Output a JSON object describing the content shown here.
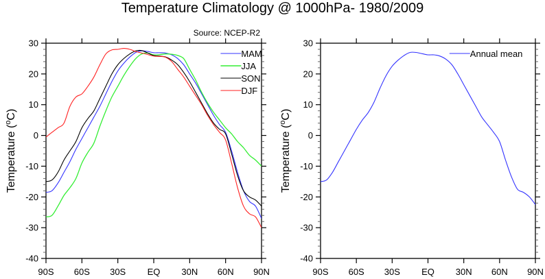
{
  "title": "Temperature Climatology @ 1000hPa- 1980/2009",
  "chart_data": [
    {
      "type": "line",
      "panel": "left",
      "source_label": "Source: NCEP-R2",
      "xlabel": "",
      "ylabel": "Temperature (°C)",
      "ylabel_parts": {
        "pre": "Temperature (",
        "sup": "o",
        "post": "C)"
      },
      "xlim": [
        -90,
        90
      ],
      "ylim": [
        -40,
        30
      ],
      "xticks": [
        -90,
        -60,
        -30,
        0,
        30,
        60,
        90
      ],
      "xtick_labels": [
        "90S",
        "60S",
        "30S",
        "EQ",
        "30N",
        "60N",
        "90N"
      ],
      "yticks": [
        -40,
        -30,
        -20,
        -10,
        0,
        10,
        20,
        30
      ],
      "ytick_labels": [
        "-40",
        "-30",
        "-20",
        "-10",
        "0",
        "10",
        "20",
        "30"
      ],
      "grid": false,
      "legend_position": "top-right",
      "x": [
        -90,
        -85,
        -80,
        -75,
        -70,
        -65,
        -60,
        -55,
        -50,
        -45,
        -40,
        -35,
        -30,
        -25,
        -20,
        -15,
        -10,
        -5,
        0,
        5,
        10,
        15,
        20,
        25,
        30,
        35,
        40,
        45,
        50,
        55,
        60,
        65,
        70,
        75,
        80,
        85,
        90
      ],
      "series": [
        {
          "name": "MAM",
          "color": "#3333ff",
          "values": [
            -18.5,
            -18,
            -15.5,
            -12,
            -8.5,
            -4.5,
            -1,
            2.5,
            6,
            9.5,
            13.5,
            17.5,
            21,
            23.5,
            25.5,
            27,
            27.5,
            27.3,
            26.9,
            26.9,
            26.8,
            26.2,
            25,
            23,
            20,
            17,
            13.5,
            10,
            6.5,
            3.5,
            1,
            -5,
            -12,
            -18,
            -21.5,
            -23,
            -27
          ]
        },
        {
          "name": "JJA",
          "color": "#33ee33",
          "values": [
            -26.5,
            -26,
            -23,
            -19.5,
            -17,
            -14,
            -9,
            -5.5,
            -2.5,
            3,
            8,
            12.5,
            16,
            19.5,
            22.5,
            25,
            26.5,
            26.8,
            26.2,
            26.3,
            26.5,
            26.4,
            26,
            25,
            21.5,
            18,
            14,
            10.5,
            7.5,
            5,
            2.5,
            0.5,
            -2,
            -4,
            -6.5,
            -8,
            -10
          ]
        },
        {
          "name": "SON",
          "color": "#000000",
          "values": [
            -15,
            -14.5,
            -12,
            -8,
            -5,
            -2,
            2.5,
            5.5,
            8,
            12,
            16,
            20,
            23,
            25,
            26.5,
            27.5,
            27.6,
            26.8,
            26,
            25.8,
            25.5,
            24.5,
            23,
            20.5,
            17.5,
            14,
            10.5,
            7,
            4,
            2,
            0.5,
            -6,
            -13,
            -18,
            -20,
            -21,
            -23
          ]
        },
        {
          "name": "DJF",
          "color": "#ff2222",
          "values": [
            -0.5,
            1,
            2.5,
            4,
            9.5,
            12.5,
            13.5,
            16,
            19,
            23,
            26.5,
            27.8,
            28,
            28.3,
            28,
            27.3,
            26.8,
            26.3,
            25.8,
            25.7,
            25.4,
            24,
            21.5,
            19,
            16,
            13,
            10,
            6.5,
            3.5,
            1,
            -1.5,
            -9,
            -17,
            -23,
            -25.5,
            -26.5,
            -30
          ]
        }
      ]
    },
    {
      "type": "line",
      "panel": "right",
      "xlabel": "",
      "ylabel": "Temperature (°C)",
      "ylabel_parts": {
        "pre": "Temperature (",
        "sup": "o",
        "post": "C)"
      },
      "xlim": [
        -90,
        90
      ],
      "ylim": [
        -40,
        30
      ],
      "xticks": [
        -90,
        -60,
        -30,
        0,
        30,
        60,
        90
      ],
      "xtick_labels": [
        "90S",
        "60S",
        "30S",
        "EQ",
        "30N",
        "60N",
        "90N"
      ],
      "yticks": [
        -40,
        -30,
        -20,
        -10,
        0,
        10,
        20,
        30
      ],
      "ytick_labels": [
        "-40",
        "-30",
        "-20",
        "-10",
        "0",
        "10",
        "20",
        "30"
      ],
      "grid": false,
      "legend_position": "top-right",
      "x": [
        -90,
        -85,
        -80,
        -75,
        -70,
        -65,
        -60,
        -55,
        -50,
        -45,
        -40,
        -35,
        -30,
        -25,
        -20,
        -15,
        -10,
        -5,
        0,
        5,
        10,
        15,
        20,
        25,
        30,
        35,
        40,
        45,
        50,
        55,
        60,
        65,
        70,
        75,
        80,
        85,
        90
      ],
      "series": [
        {
          "name": "Annual mean",
          "color": "#3333ff",
          "values": [
            -15,
            -14.5,
            -12,
            -8.5,
            -5,
            -1.5,
            2,
            5,
            7.5,
            11,
            15.5,
            19.5,
            22.5,
            24.5,
            26,
            27,
            27,
            26.6,
            26.2,
            26.2,
            25.8,
            24.8,
            23,
            20,
            16.5,
            13,
            9.5,
            6,
            3.5,
            1,
            -2,
            -8,
            -13.5,
            -17.5,
            -18.5,
            -20,
            -22.5
          ]
        }
      ]
    }
  ]
}
